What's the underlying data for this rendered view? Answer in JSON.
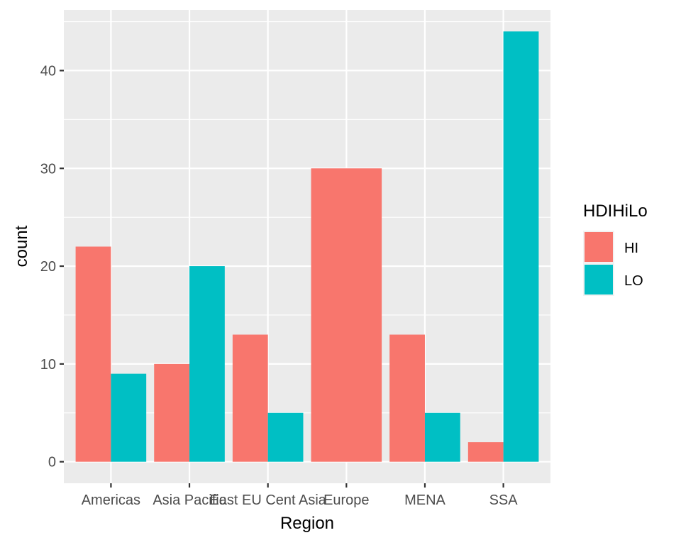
{
  "chart_data": {
    "type": "bar",
    "xlabel": "Region",
    "ylabel": "count",
    "categories": [
      "Americas",
      "Asia Pacific",
      "East EU Cent Asia",
      "Europe",
      "MENA",
      "SSA"
    ],
    "series": [
      {
        "name": "HI",
        "color": "#F8766D",
        "values": [
          22,
          10,
          13,
          30,
          13,
          2
        ]
      },
      {
        "name": "LO",
        "color": "#00BFC4",
        "values": [
          9,
          20,
          5,
          null,
          5,
          44
        ]
      }
    ],
    "ylim": [
      -2.2,
      46.2
    ],
    "yticks": [
      0,
      10,
      20,
      30,
      40
    ],
    "grid": true,
    "legend": {
      "title": "HDIHiLo",
      "position": "right"
    },
    "colors": {
      "panel_background": "#EBEBEB",
      "grid": "#FFFFFF",
      "HI": "#F8766D",
      "LO": "#00BFC4"
    }
  }
}
